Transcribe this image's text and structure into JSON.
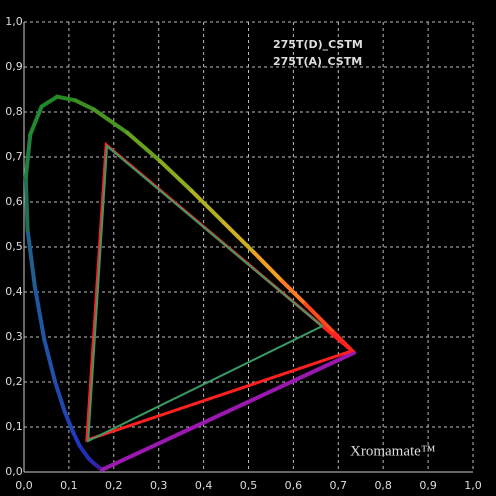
{
  "chart_data": {
    "type": "chromaticity",
    "xlim": [
      0,
      1
    ],
    "ylim": [
      0,
      1
    ],
    "xticks": [
      {
        "value": 0,
        "label": "0,0"
      },
      {
        "value": 0.1,
        "label": "0,1"
      },
      {
        "value": 0.2,
        "label": "0,2"
      },
      {
        "value": 0.3,
        "label": "0,3"
      },
      {
        "value": 0.4,
        "label": "0,4"
      },
      {
        "value": 0.5,
        "label": "0,5"
      },
      {
        "value": 0.6,
        "label": "0,6"
      },
      {
        "value": 0.7,
        "label": "0,7"
      },
      {
        "value": 0.8,
        "label": "0,8"
      },
      {
        "value": 0.9,
        "label": "0,9"
      },
      {
        "value": 1,
        "label": "1,0"
      }
    ],
    "yticks": [
      {
        "value": 0,
        "label": "0,0"
      },
      {
        "value": 0.1,
        "label": "0,1"
      },
      {
        "value": 0.2,
        "label": "0,2"
      },
      {
        "value": 0.3,
        "label": "0,3"
      },
      {
        "value": 0.4,
        "label": "0,4"
      },
      {
        "value": 0.5,
        "label": "0,5"
      },
      {
        "value": 0.6,
        "label": "0,6"
      },
      {
        "value": 0.7,
        "label": "0,7"
      },
      {
        "value": 0.8,
        "label": "0,8"
      },
      {
        "value": 0.9,
        "label": "0,9"
      },
      {
        "value": 1,
        "label": "1,0"
      }
    ],
    "grid": true,
    "locus": {
      "x": [
        0.174,
        0.157,
        0.144,
        0.124,
        0.11,
        0.091,
        0.069,
        0.045,
        0.024,
        0.008,
        0.004,
        0.014,
        0.039,
        0.074,
        0.114,
        0.155,
        0.23,
        0.302,
        0.373,
        0.444,
        0.513,
        0.575,
        0.627,
        0.692,
        0.735
      ],
      "y": [
        0.005,
        0.018,
        0.03,
        0.058,
        0.087,
        0.133,
        0.201,
        0.295,
        0.413,
        0.538,
        0.655,
        0.75,
        0.812,
        0.834,
        0.826,
        0.806,
        0.754,
        0.692,
        0.625,
        0.555,
        0.487,
        0.424,
        0.373,
        0.308,
        0.265
      ],
      "colors": [
        "#3a1aa0",
        "#2a2ab0",
        "#2030b8",
        "#2038c0",
        "#2040b8",
        "#2048b0",
        "#2050a8",
        "#2058a0",
        "#206090",
        "#1f7050",
        "#1f8040",
        "#1f8a30",
        "#208a28",
        "#2a8a22",
        "#3a8e22",
        "#4a9420",
        "#6aa020",
        "#8aaa20",
        "#b0b020",
        "#d0b020",
        "#f0a020",
        "#ff7a20",
        "#ff4a20",
        "#ff2a20",
        "#9a18b0"
      ]
    },
    "series": [
      {
        "name": "275T(D)_CSTM",
        "color": "#ff2020",
        "x": [
          0.73,
          0.183,
          0.14
        ],
        "y": [
          0.269,
          0.727,
          0.071
        ]
      },
      {
        "name": "275T(A)_CSTM",
        "color": "#3a9a66",
        "x": [
          0.664,
          0.185,
          0.143
        ],
        "y": [
          0.324,
          0.724,
          0.069
        ]
      }
    ],
    "watermark": "Xromamate™"
  }
}
